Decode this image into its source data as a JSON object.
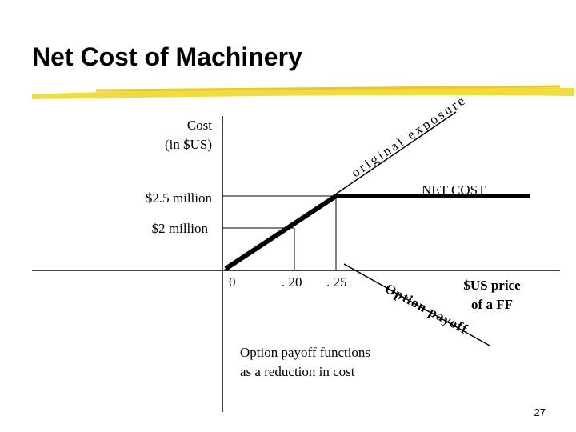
{
  "header": {
    "title": "Net Cost of Machinery"
  },
  "diagram": {
    "y_axis_label": [
      "Cost",
      "(in $US)"
    ],
    "y_labels": [
      "$2.5 million",
      "$2 million"
    ],
    "x_labels": [
      "0",
      ". 20",
      ". 25"
    ],
    "x_axis_label": [
      "$US price",
      "of a FF"
    ],
    "original_line_label": "original exposure",
    "net_cost_label": "NET COST",
    "option_line_label": "Option payoff",
    "note": [
      "Option payoff functions",
      "as a reduction in cost"
    ]
  },
  "footer": {
    "page_number": "27"
  }
}
